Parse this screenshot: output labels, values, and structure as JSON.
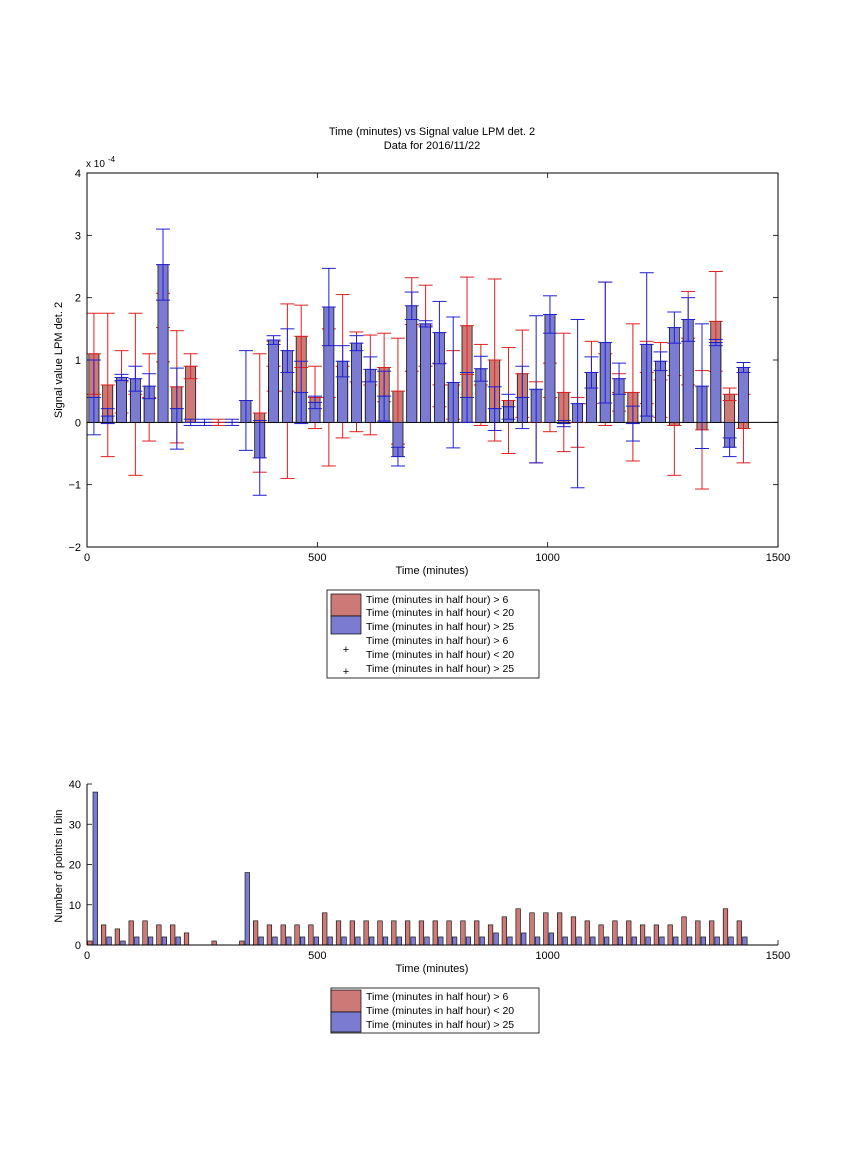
{
  "colors": {
    "red_series": "#cc7a78",
    "blue_series": "#7b7bd1",
    "red_err": "#e02020",
    "blue_err": "#2020d0"
  },
  "chart_data": [
    {
      "type": "bar",
      "title": "Time (minutes) vs Signal value LPM det. 2",
      "subtitle": "Data for 2016/11/22",
      "xlabel": "Time (minutes)",
      "ylabel": "Signal value LPM det. 2",
      "y_exponent": "x 10",
      "y_exponent_power": "-4",
      "xlim": [
        0,
        1500
      ],
      "ylim": [
        -2,
        4
      ],
      "xticks": [
        "0",
        "500",
        "1000",
        "1500"
      ],
      "yticks": [
        "−2",
        "−1",
        "0",
        "1",
        "2",
        "3",
        "4"
      ],
      "legend": {
        "placement": "below",
        "entries": [
          [
            "Time (minutes in half hour) > 6",
            "Time (minutes in half hour) < 20"
          ],
          [
            "Time (minutes in half hour) > 25"
          ],
          [
            "Time (minutes in half hour) > 6",
            "Time (minutes in half hour) < 20"
          ],
          [
            "Time (minutes in half hour) > 25"
          ]
        ]
      },
      "series": [
        {
          "name": "Time (minutes in half hour) > 6 / Time (minutes in half hour) < 20",
          "x": [
            15,
            45,
            75,
            105,
            135,
            165,
            195,
            225,
            285,
            375,
            405,
            435,
            465,
            495,
            525,
            555,
            585,
            615,
            645,
            675,
            705,
            735,
            765,
            795,
            825,
            855,
            885,
            915,
            945,
            975,
            1005,
            1035,
            1065,
            1095,
            1125,
            1155,
            1185,
            1215,
            1245,
            1275,
            1305,
            1335,
            1365,
            1395,
            1425
          ],
          "y": [
            1.1,
            0.6,
            0.65,
            0.45,
            0.4,
            1.52,
            0.57,
            0.9,
            0.0,
            0.15,
            0.9,
            0.5,
            1.38,
            0.4,
            0.4,
            0.9,
            0.65,
            0.6,
            0.88,
            0.5,
            1.57,
            1.55,
            0.6,
            0.6,
            1.55,
            0.6,
            1.0,
            0.35,
            0.78,
            0.0,
            0.4,
            0.48,
            0.0,
            0.8,
            1.1,
            0.48,
            0.48,
            0.8,
            0.68,
            -0.05,
            1.35,
            -0.12,
            1.62,
            0.45,
            -0.1
          ],
          "err": [
            0.65,
            1.15,
            0.5,
            1.3,
            0.7,
            0.55,
            0.9,
            0.2,
            0.05,
            0.95,
            0.4,
            1.4,
            0.5,
            0.5,
            1.1,
            1.15,
            0.8,
            0.8,
            0.55,
            0.85,
            0.75,
            0.65,
            0.35,
            0.55,
            0.78,
            0.65,
            1.3,
            0.85,
            0.7,
            0.65,
            0.55,
            0.95,
            0.4,
            0.5,
            1.15,
            0.3,
            1.1,
            0.5,
            0.6,
            0.8,
            0.75,
            0.95,
            0.8,
            0.1,
            0.55
          ],
          "color": "#cc7a78"
        },
        {
          "name": "Time (minutes in half hour) > 25",
          "x": [
            15,
            45,
            75,
            105,
            135,
            165,
            195,
            225,
            255,
            315,
            345,
            375,
            405,
            435,
            465,
            495,
            525,
            555,
            585,
            615,
            645,
            675,
            705,
            735,
            765,
            795,
            825,
            855,
            885,
            915,
            945,
            975,
            1005,
            1035,
            1065,
            1095,
            1125,
            1155,
            1185,
            1215,
            1245,
            1275,
            1305,
            1335,
            1365,
            1395,
            1425
          ],
          "y": [
            0.4,
            0.1,
            0.72,
            0.7,
            0.58,
            2.53,
            0.22,
            0.0,
            0.0,
            0.0,
            0.35,
            -0.57,
            1.32,
            1.15,
            0.48,
            0.32,
            1.85,
            0.98,
            1.27,
            0.85,
            0.42,
            -0.55,
            1.87,
            1.58,
            1.44,
            0.64,
            0.4,
            0.86,
            0.22,
            0.25,
            0.4,
            0.53,
            1.73,
            -0.02,
            0.3,
            0.8,
            1.28,
            0.7,
            -0.02,
            1.25,
            0.98,
            1.52,
            1.65,
            0.58,
            1.28,
            -0.4,
            0.88
          ],
          "err": [
            0.6,
            0.12,
            0.05,
            0.2,
            0.2,
            0.57,
            0.65,
            0.05,
            0.05,
            0.05,
            0.8,
            0.6,
            0.07,
            0.35,
            0.5,
            0.1,
            0.62,
            0.25,
            0.12,
            0.2,
            0.4,
            0.15,
            0.22,
            0.05,
            0.5,
            1.05,
            0.4,
            0.2,
            0.35,
            0.2,
            0.5,
            1.18,
            0.3,
            0.05,
            1.35,
            0.25,
            0.97,
            0.25,
            0.28,
            1.15,
            0.15,
            0.25,
            0.35,
            1.0,
            0.05,
            0.15,
            0.08
          ],
          "color": "#7b7bd1"
        }
      ]
    },
    {
      "type": "bar",
      "xlabel": "Time (minutes)",
      "ylabel": "Number of points in bin",
      "xlim": [
        0,
        1500
      ],
      "ylim": [
        0,
        40
      ],
      "xticks": [
        "0",
        "500",
        "1000",
        "1500"
      ],
      "yticks": [
        "0",
        "10",
        "20",
        "30",
        "40"
      ],
      "legend": {
        "placement": "below",
        "entries": [
          [
            "Time (minutes in half hour) > 6",
            "Time (minutes in half hour) < 20"
          ],
          [
            "Time (minutes in half hour) > 25"
          ]
        ]
      },
      "series": [
        {
          "name": "Time (minutes in half hour) > 6 / Time (minutes in half hour) < 20",
          "x": [
            6,
            36,
            66,
            96,
            126,
            156,
            186,
            216,
            276,
            336,
            366,
            396,
            426,
            456,
            486,
            516,
            546,
            576,
            606,
            636,
            666,
            696,
            726,
            756,
            786,
            816,
            846,
            876,
            906,
            936,
            966,
            996,
            1026,
            1056,
            1086,
            1116,
            1146,
            1176,
            1206,
            1236,
            1266,
            1296,
            1326,
            1356,
            1386,
            1416
          ],
          "y": [
            1,
            5,
            4,
            6,
            6,
            5,
            5,
            3,
            1,
            1,
            6,
            5,
            5,
            5,
            5,
            8,
            6,
            6,
            6,
            6,
            6,
            6,
            6,
            6,
            6,
            6,
            6,
            5,
            7,
            9,
            8,
            8,
            8,
            7,
            6,
            5,
            6,
            6,
            5,
            5,
            5,
            7,
            6,
            6,
            9,
            6
          ],
          "color": "#cc7a78"
        },
        {
          "name": "Time (minutes in half hour) > 25",
          "x": [
            18,
            48,
            78,
            108,
            138,
            168,
            198,
            348,
            378,
            408,
            438,
            468,
            498,
            528,
            558,
            588,
            618,
            648,
            678,
            708,
            738,
            768,
            798,
            828,
            858,
            888,
            918,
            948,
            978,
            1008,
            1038,
            1068,
            1098,
            1128,
            1158,
            1188,
            1218,
            1248,
            1278,
            1308,
            1338,
            1368,
            1398,
            1428
          ],
          "y": [
            38,
            2,
            1,
            2,
            2,
            2,
            2,
            18,
            2,
            2,
            2,
            2,
            2,
            2,
            2,
            2,
            2,
            2,
            2,
            2,
            2,
            2,
            2,
            2,
            2,
            3,
            2,
            3,
            2,
            3,
            2,
            2,
            2,
            2,
            2,
            2,
            2,
            2,
            2,
            2,
            2,
            2,
            2,
            2
          ],
          "color": "#7b7bd1"
        }
      ]
    }
  ]
}
